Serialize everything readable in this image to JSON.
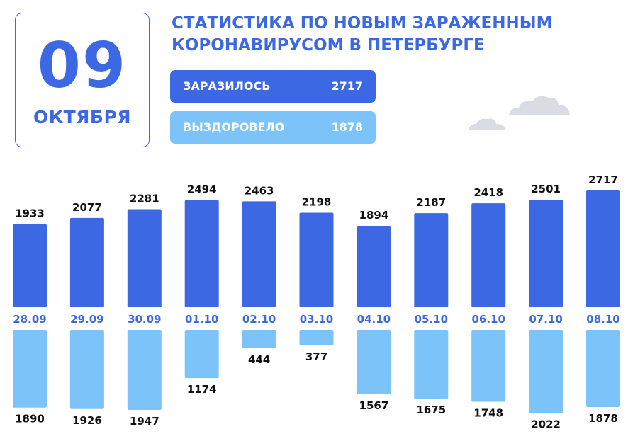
{
  "header": {
    "day": "09",
    "month": "ОКТЯБРЯ",
    "title_line1": "СТАТИСТИКА ПО НОВЫМ ЗАРАЖЕННЫМ",
    "title_line2": "КОРОНАВИРУСОМ В ПЕТЕРБУРГЕ"
  },
  "legend": {
    "infected": {
      "label": "ЗАРАЗИЛОСЬ",
      "value": "2717"
    },
    "recovered": {
      "label": "ВЫЗДОРОВЕЛО",
      "value": "1878"
    }
  },
  "colors": {
    "infected": "#3d68e3",
    "recovered": "#7cc3fa",
    "date_label": "#3d68e3",
    "value_label": "#111111",
    "cloud": "#d9dde3"
  },
  "chart_data": {
    "type": "bar",
    "categories": [
      "28.09",
      "29.09",
      "30.09",
      "01.10",
      "02.10",
      "03.10",
      "04.10",
      "05.10",
      "06.10",
      "07.10",
      "08.10"
    ],
    "series": [
      {
        "name": "ЗАРАЗИЛОСЬ",
        "values": [
          1933,
          2077,
          2281,
          2494,
          2463,
          2198,
          1894,
          2187,
          2418,
          2501,
          2717
        ]
      },
      {
        "name": "ВЫЗДОРОВЕЛО",
        "values": [
          1890,
          1926,
          1947,
          1174,
          444,
          377,
          1567,
          1675,
          1748,
          2022,
          1878
        ]
      }
    ],
    "layout": "mirrored vertical bars: infected above date labels, recovered below",
    "grid": false
  }
}
